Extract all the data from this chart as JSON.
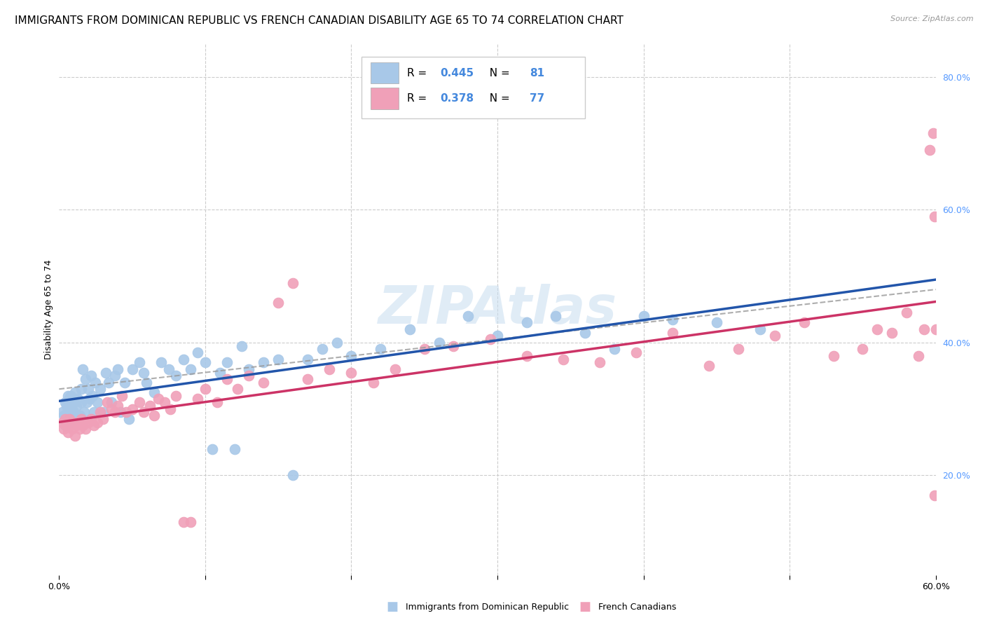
{
  "title": "IMMIGRANTS FROM DOMINICAN REPUBLIC VS FRENCH CANADIAN DISABILITY AGE 65 TO 74 CORRELATION CHART",
  "source": "Source: ZipAtlas.com",
  "ylabel": "Disability Age 65 to 74",
  "xmin": 0.0,
  "xmax": 0.6,
  "ymin": 0.05,
  "ymax": 0.85,
  "xtick_positions": [
    0.0,
    0.1,
    0.2,
    0.3,
    0.4,
    0.5,
    0.6
  ],
  "xtick_labels": [
    "0.0%",
    "",
    "",
    "",
    "",
    "",
    "60.0%"
  ],
  "yticks_right": [
    0.2,
    0.4,
    0.6,
    0.8
  ],
  "ytick_labels_right": [
    "20.0%",
    "40.0%",
    "60.0%",
    "80.0%"
  ],
  "series1": {
    "name": "Immigrants from Dominican Republic",
    "R": 0.445,
    "N": 81,
    "color": "#a8c8e8",
    "line_color": "#2255aa",
    "x": [
      0.002,
      0.003,
      0.004,
      0.004,
      0.005,
      0.005,
      0.006,
      0.006,
      0.007,
      0.007,
      0.008,
      0.008,
      0.009,
      0.009,
      0.01,
      0.01,
      0.011,
      0.012,
      0.013,
      0.014,
      0.015,
      0.015,
      0.016,
      0.017,
      0.018,
      0.019,
      0.02,
      0.021,
      0.022,
      0.023,
      0.024,
      0.025,
      0.026,
      0.028,
      0.03,
      0.032,
      0.034,
      0.036,
      0.038,
      0.04,
      0.042,
      0.045,
      0.048,
      0.05,
      0.055,
      0.058,
      0.06,
      0.065,
      0.07,
      0.075,
      0.08,
      0.085,
      0.09,
      0.095,
      0.1,
      0.105,
      0.11,
      0.115,
      0.12,
      0.125,
      0.13,
      0.14,
      0.15,
      0.16,
      0.17,
      0.18,
      0.19,
      0.2,
      0.22,
      0.24,
      0.26,
      0.28,
      0.3,
      0.32,
      0.34,
      0.36,
      0.38,
      0.4,
      0.42,
      0.45,
      0.48
    ],
    "y": [
      0.295,
      0.29,
      0.31,
      0.275,
      0.305,
      0.285,
      0.32,
      0.3,
      0.315,
      0.28,
      0.295,
      0.32,
      0.3,
      0.285,
      0.31,
      0.295,
      0.325,
      0.305,
      0.315,
      0.29,
      0.33,
      0.31,
      0.36,
      0.295,
      0.345,
      0.31,
      0.33,
      0.315,
      0.35,
      0.32,
      0.295,
      0.34,
      0.31,
      0.33,
      0.295,
      0.355,
      0.34,
      0.31,
      0.35,
      0.36,
      0.295,
      0.34,
      0.285,
      0.36,
      0.37,
      0.355,
      0.34,
      0.325,
      0.37,
      0.36,
      0.35,
      0.375,
      0.36,
      0.385,
      0.37,
      0.24,
      0.355,
      0.37,
      0.24,
      0.395,
      0.36,
      0.37,
      0.375,
      0.2,
      0.375,
      0.39,
      0.4,
      0.38,
      0.39,
      0.42,
      0.4,
      0.44,
      0.41,
      0.43,
      0.44,
      0.415,
      0.39,
      0.44,
      0.435,
      0.43,
      0.42
    ]
  },
  "series2": {
    "name": "French Canadians",
    "R": 0.378,
    "N": 77,
    "color": "#f0a0b8",
    "line_color": "#cc3366",
    "x": [
      0.002,
      0.003,
      0.004,
      0.005,
      0.006,
      0.007,
      0.008,
      0.009,
      0.01,
      0.011,
      0.012,
      0.013,
      0.014,
      0.015,
      0.016,
      0.018,
      0.02,
      0.022,
      0.024,
      0.026,
      0.028,
      0.03,
      0.033,
      0.036,
      0.038,
      0.04,
      0.043,
      0.046,
      0.05,
      0.055,
      0.058,
      0.062,
      0.065,
      0.068,
      0.072,
      0.076,
      0.08,
      0.085,
      0.09,
      0.095,
      0.1,
      0.108,
      0.115,
      0.122,
      0.13,
      0.14,
      0.15,
      0.16,
      0.17,
      0.185,
      0.2,
      0.215,
      0.23,
      0.25,
      0.27,
      0.295,
      0.32,
      0.345,
      0.37,
      0.395,
      0.42,
      0.445,
      0.465,
      0.49,
      0.51,
      0.53,
      0.55,
      0.56,
      0.57,
      0.58,
      0.588,
      0.592,
      0.596,
      0.598,
      0.599,
      0.599,
      0.6
    ],
    "y": [
      0.28,
      0.27,
      0.285,
      0.275,
      0.265,
      0.285,
      0.275,
      0.27,
      0.28,
      0.26,
      0.275,
      0.28,
      0.27,
      0.285,
      0.275,
      0.27,
      0.28,
      0.285,
      0.275,
      0.28,
      0.295,
      0.285,
      0.31,
      0.3,
      0.295,
      0.305,
      0.32,
      0.295,
      0.3,
      0.31,
      0.295,
      0.305,
      0.29,
      0.315,
      0.31,
      0.3,
      0.32,
      0.13,
      0.13,
      0.315,
      0.33,
      0.31,
      0.345,
      0.33,
      0.35,
      0.34,
      0.46,
      0.49,
      0.345,
      0.36,
      0.355,
      0.34,
      0.36,
      0.39,
      0.395,
      0.405,
      0.38,
      0.375,
      0.37,
      0.385,
      0.415,
      0.365,
      0.39,
      0.41,
      0.43,
      0.38,
      0.39,
      0.42,
      0.415,
      0.445,
      0.38,
      0.42,
      0.69,
      0.715,
      0.59,
      0.17,
      0.42
    ]
  },
  "watermark": "ZIPAtlas",
  "background_color": "#ffffff",
  "grid_color": "#cccccc",
  "title_fontsize": 11,
  "axis_fontsize": 9
}
